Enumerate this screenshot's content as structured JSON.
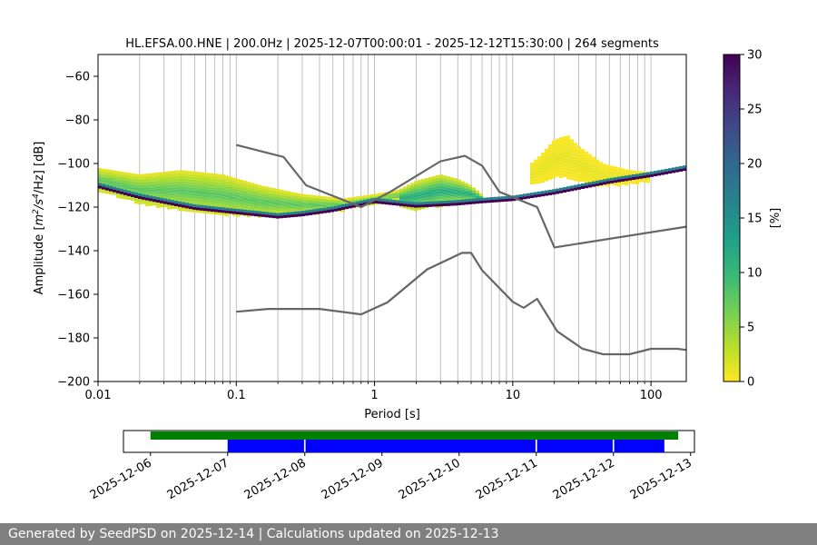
{
  "chart_data": [
    {
      "type": "heatmap",
      "title": "HL.EFSA.00.HNE | 200.0Hz | 2025-12-07T00:00:01 - 2025-12-12T15:30:00 | 264 segments",
      "xlabel": "Period [s]",
      "ylabel_prefix": "Amplitude [",
      "ylabel_math": "m",
      "ylabel_sup1": "2",
      "ylabel_mid": "/s",
      "ylabel_sup2": "4",
      "ylabel_suffix": "/Hz] [dB]",
      "xscale": "log",
      "xlim": [
        0.01,
        180
      ],
      "ylim": [
        -200,
        -50
      ],
      "xticks": [
        0.01,
        0.1,
        1,
        10,
        100
      ],
      "xtick_labels": [
        "0.01",
        "0.1",
        "1",
        "10",
        "100"
      ],
      "yticks": [
        -60,
        -80,
        -100,
        -120,
        -140,
        -160,
        -180,
        -200
      ],
      "ytick_labels": [
        "−60",
        "−80",
        "−100",
        "−120",
        "−140",
        "−160",
        "−180",
        "−200"
      ],
      "grid": true,
      "colorbar": {
        "label": "[%]",
        "range": [
          0,
          30
        ],
        "ticks": [
          0,
          5,
          10,
          15,
          20,
          25,
          30
        ],
        "tick_labels": [
          "0",
          "5",
          "10",
          "15",
          "20",
          "25",
          "30"
        ],
        "colormap": [
          "#fde725",
          "#b5de2b",
          "#6ece58",
          "#35b779",
          "#1f9e89",
          "#26828e",
          "#31688e",
          "#3e4989",
          "#482878",
          "#440154"
        ]
      },
      "mode_curve": {
        "x": [
          0.01,
          0.02,
          0.05,
          0.1,
          0.2,
          0.3,
          0.5,
          1,
          2,
          4,
          6,
          10,
          20,
          50,
          100,
          180
        ],
        "y": [
          -110,
          -115,
          -120,
          -122,
          -124,
          -123,
          -121,
          -117,
          -119,
          -118,
          -117,
          -116,
          -113,
          -108,
          -105,
          -102
        ]
      },
      "density_bands": [
        {
          "x": [
            0.01,
            0.02,
            0.04,
            0.08,
            0.15,
            0.3,
            0.6,
            1.0,
            1.5
          ],
          "ylow": [
            -112,
            -118,
            -121,
            -123,
            -124,
            -123,
            -121,
            -118,
            -116
          ],
          "yhigh": [
            -102,
            -105,
            -103,
            -105,
            -110,
            -114,
            -116,
            -114,
            -112
          ],
          "percent": 8
        },
        {
          "x": [
            1.5,
            2.0,
            3.0,
            4.0,
            5.0,
            6.0
          ],
          "ylow": [
            -119,
            -121,
            -119,
            -118,
            -117,
            -117
          ],
          "yhigh": [
            -112,
            -108,
            -105,
            -107,
            -110,
            -114
          ],
          "percent": 12
        },
        {
          "x": [
            13,
            16,
            20,
            25,
            30,
            45,
            70,
            100
          ],
          "ylow": [
            -110,
            -108,
            -106,
            -106,
            -108,
            -110,
            -109,
            -108
          ],
          "yhigh": [
            -101,
            -96,
            -89,
            -87,
            -92,
            -100,
            -103,
            -104
          ],
          "percent": 1
        }
      ],
      "noise_model_high": {
        "x": [
          0.1,
          0.22,
          0.32,
          0.8,
          1.3,
          3.0,
          4.5,
          6.0,
          8.0,
          15,
          20,
          180
        ],
        "y": [
          -91.5,
          -97,
          -110,
          -120,
          -113,
          -99,
          -96.5,
          -101,
          -113,
          -120,
          -138.5,
          -129
        ]
      },
      "noise_model_low": {
        "x": [
          0.1,
          0.17,
          0.4,
          0.8,
          1.24,
          2.4,
          4.3,
          5.0,
          6.0,
          10,
          12,
          15,
          21,
          32,
          45,
          70,
          100,
          154,
          180
        ],
        "y": [
          -168,
          -166.7,
          -166.7,
          -169.2,
          -163.7,
          -148.6,
          -141,
          -141,
          -149,
          -163.4,
          -166.2,
          -162.1,
          -177,
          -185,
          -187.5,
          -187.5,
          -185,
          -185,
          -185.5
        ]
      }
    },
    {
      "type": "timeline",
      "xlabels": [
        "2025-12-06",
        "2025-12-07",
        "2025-12-08",
        "2025-12-09",
        "2025-12-10",
        "2025-12-11",
        "2025-12-12",
        "2025-12-13"
      ],
      "xlim_days": [
        5.65,
        13.05
      ],
      "available_data": {
        "color": "#008000",
        "start_day": 6.0,
        "end_day": 12.84
      },
      "used_segments": {
        "color": "#0000ff",
        "segments": [
          [
            7.0,
            7.99
          ],
          [
            8.01,
            10.99
          ],
          [
            11.01,
            11.99
          ],
          [
            12.01,
            12.66
          ]
        ]
      }
    }
  ],
  "footer": {
    "text": "Generated by SeedPSD on 2025-12-14 | Calculations updated on 2025-12-13"
  }
}
